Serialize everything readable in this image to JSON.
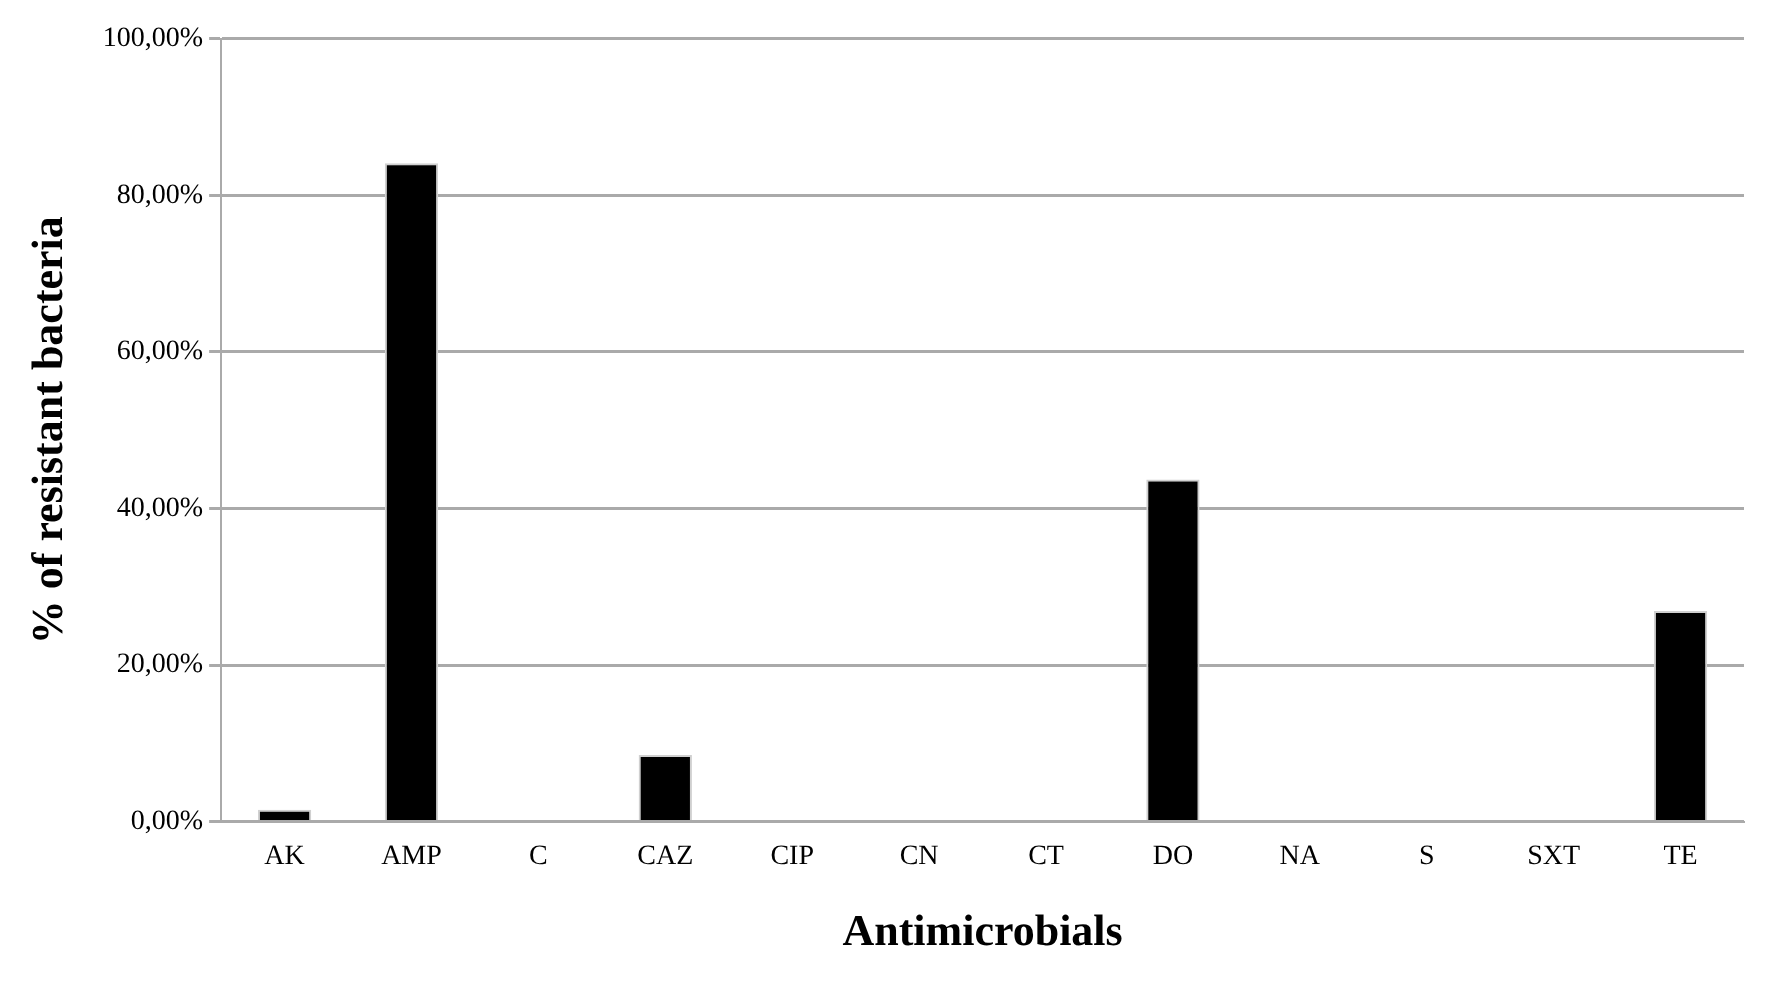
{
  "chart_data": {
    "type": "bar",
    "xlabel": "Antimicrobials",
    "ylabel": "% of resistant bacteria",
    "categories": [
      "AK",
      "AMP",
      "C",
      "CAZ",
      "CIP",
      "CN",
      "CT",
      "DO",
      "NA",
      "S",
      "SXT",
      "TE"
    ],
    "values": [
      1.5,
      84.1,
      0,
      8.5,
      0,
      0,
      0,
      43.7,
      0,
      0,
      0,
      26.9
    ],
    "color": "#000000",
    "ylim": [
      0,
      100
    ],
    "yticks": [
      {
        "value": 0,
        "label": "0,00%"
      },
      {
        "value": 20,
        "label": "20,00%"
      },
      {
        "value": 40,
        "label": "40,00%"
      },
      {
        "value": 60,
        "label": "60,00%"
      },
      {
        "value": 80,
        "label": "80,00%"
      },
      {
        "value": 100,
        "label": "100,00%"
      }
    ],
    "grid": "y",
    "legend": false
  }
}
